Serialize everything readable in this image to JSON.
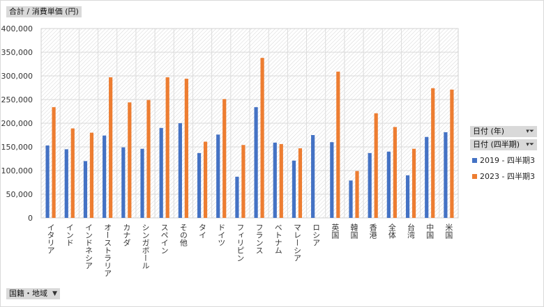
{
  "measure_button": {
    "label": "合計 / 消費単価 (円)"
  },
  "axis_button": {
    "label": "国籍・地域"
  },
  "legend": {
    "year_button": "日付 (年)",
    "quarter_button": "日付 (四半期)"
  },
  "chart_data": {
    "type": "bar",
    "ylim": [
      0,
      400000
    ],
    "yticks": [
      "0",
      "50,000",
      "100,000",
      "150,000",
      "200,000",
      "250,000",
      "300,000",
      "350,000",
      "400,000"
    ],
    "grid": true,
    "legend_position": "right",
    "categories": [
      "イタリア",
      "インド",
      "インドネシア",
      "オーストラリア",
      "カナダ",
      "シンガポール",
      "スペイン",
      "その他",
      "タイ",
      "ドイツ",
      "フィリピン",
      "フランス",
      "ベトナム",
      "マレーシア",
      "ロシア",
      "英国",
      "韓国",
      "香港",
      "全体",
      "台湾",
      "中国",
      "米国"
    ],
    "series": [
      {
        "name": "2019 - 四半期3",
        "color": "#4472c4",
        "values": [
          153000,
          145000,
          120000,
          174000,
          149000,
          146000,
          190000,
          200000,
          137000,
          176000,
          87000,
          234000,
          159000,
          121000,
          175000,
          160000,
          79000,
          137000,
          140000,
          90000,
          171000,
          181000
        ]
      },
      {
        "name": "2023 - 四半期3",
        "color": "#ed7d31",
        "values": [
          234000,
          189000,
          180000,
          297000,
          244000,
          249000,
          297000,
          294000,
          161000,
          251000,
          154000,
          338000,
          156000,
          147000,
          null,
          309000,
          99000,
          221000,
          192000,
          146000,
          274000,
          271000
        ]
      }
    ]
  }
}
